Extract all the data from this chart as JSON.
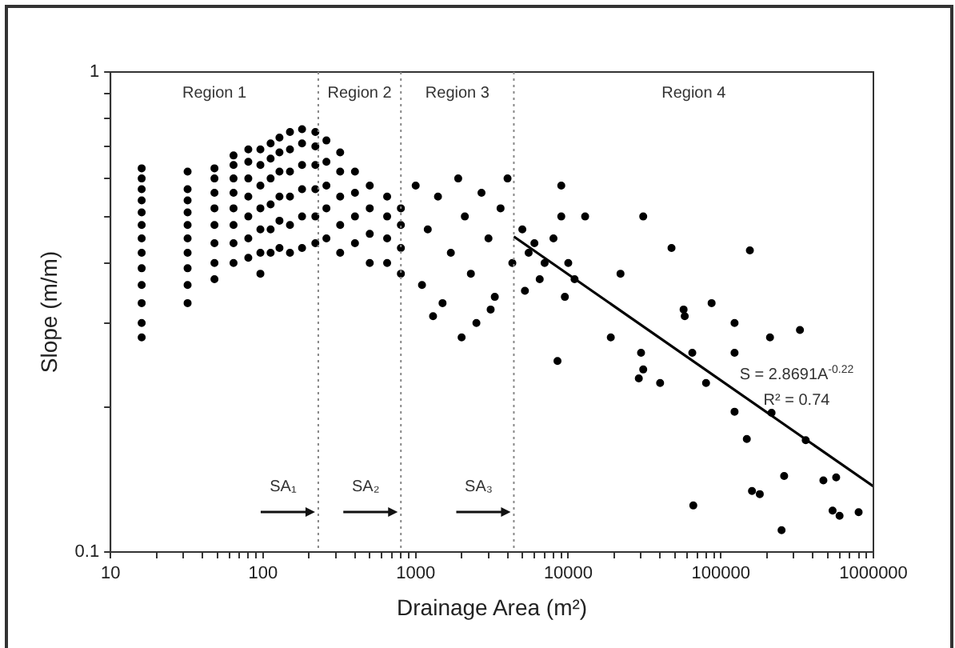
{
  "chart_data": {
    "type": "scatter",
    "xlabel": "Drainage Area (m²)",
    "ylabel": "Slope (m/m)",
    "log": "xy",
    "legend": false,
    "grid": false,
    "xlim": [
      10,
      1000000
    ],
    "xticks": [
      10,
      {
        "value": 20,
        "label": null
      },
      {
        "value": 30,
        "label": null
      },
      {
        "value": 40,
        "label": null
      },
      {
        "value": 50,
        "label": null
      },
      {
        "value": 60,
        "label": null
      },
      {
        "value": 70,
        "label": null
      },
      {
        "value": 80,
        "label": null
      },
      {
        "value": 90,
        "label": null
      },
      100,
      {
        "value": 200,
        "label": null
      },
      {
        "value": 300,
        "label": null
      },
      {
        "value": 400,
        "label": null
      },
      {
        "value": 500,
        "label": null
      },
      {
        "value": 600,
        "label": null
      },
      {
        "value": 700,
        "label": null
      },
      {
        "value": 800,
        "label": null
      },
      {
        "value": 900,
        "label": null
      },
      1000,
      {
        "value": 2000,
        "label": null
      },
      {
        "value": 3000,
        "label": null
      },
      {
        "value": 4000,
        "label": null
      },
      {
        "value": 5000,
        "label": null
      },
      {
        "value": 6000,
        "label": null
      },
      {
        "value": 7000,
        "label": null
      },
      {
        "value": 8000,
        "label": null
      },
      {
        "value": 9000,
        "label": null
      },
      10000,
      {
        "value": 20000,
        "label": null
      },
      {
        "value": 30000,
        "label": null
      },
      {
        "value": 40000,
        "label": null
      },
      {
        "value": 50000,
        "label": null
      },
      {
        "value": 60000,
        "label": null
      },
      {
        "value": 70000,
        "label": null
      },
      {
        "value": 80000,
        "label": null
      },
      {
        "value": 90000,
        "label": null
      },
      100000,
      {
        "value": 200000,
        "label": null
      },
      {
        "value": 300000,
        "label": null
      },
      {
        "value": 400000,
        "label": null
      },
      {
        "value": 500000,
        "label": null
      },
      {
        "value": 600000,
        "label": null
      },
      {
        "value": 700000,
        "label": null
      },
      {
        "value": 800000,
        "label": null
      },
      {
        "value": 900000,
        "label": null
      },
      1000000
    ],
    "ylim": [
      0.1,
      1
    ],
    "yticks": [
      0.1,
      {
        "value": 0.2,
        "label": null
      },
      {
        "value": 0.3,
        "label": null
      },
      {
        "value": 0.4,
        "label": null
      },
      {
        "value": 0.5,
        "label": null
      },
      {
        "value": 0.6,
        "label": null
      },
      {
        "value": 0.7,
        "label": null
      },
      {
        "value": 0.8,
        "label": null
      },
      {
        "value": 0.9,
        "label": null
      },
      1
    ],
    "ref_lines": [
      {
        "axis": "x",
        "value": 230,
        "label": "SA₁",
        "color": "#888888",
        "line_style": "dotted"
      },
      {
        "axis": "x",
        "value": 800,
        "label": "SA₂",
        "color": "#888888",
        "line_style": "dotted"
      },
      {
        "axis": "x",
        "value": 4400,
        "label": "SA₃",
        "color": "#888888",
        "line_style": "dotted"
      }
    ],
    "annotations": [
      "Region 1",
      "Region 2",
      "Region 3",
      "Region 4",
      "S = 2.8691A$^{-0.22}$",
      "R² = 0.74"
    ],
    "series": [
      {
        "type": "scatter",
        "color": "#000000",
        "marker": "circle",
        "x": [
          16,
          16,
          16,
          16,
          16,
          16,
          16,
          16,
          16,
          16,
          16,
          16,
          16,
          32,
          32,
          32,
          32,
          32,
          32,
          32,
          32,
          32,
          32,
          48,
          48,
          48,
          48,
          48,
          48,
          48,
          48,
          64,
          64,
          64,
          64,
          64,
          64,
          64,
          64,
          80,
          80,
          80,
          80,
          80,
          80,
          80,
          96,
          96,
          96,
          96,
          96,
          96,
          96,
          112,
          112,
          112,
          112,
          112,
          112,
          128,
          128,
          128,
          128,
          128,
          128,
          150,
          150,
          150,
          150,
          150,
          150,
          180,
          180,
          180,
          180,
          180,
          180,
          220,
          220,
          220,
          220,
          220,
          220,
          260,
          260,
          260,
          260,
          260,
          320,
          320,
          320,
          320,
          320,
          400,
          400,
          400,
          400,
          500,
          500,
          500,
          500,
          650,
          650,
          650,
          650,
          800,
          800,
          800,
          800,
          1000,
          1100,
          1200,
          1400,
          1500,
          1700,
          1900,
          2100,
          2300,
          2500,
          2700,
          3000,
          3300,
          3600,
          4000,
          4300,
          1300,
          2000,
          3100,
          5000,
          5500,
          6000,
          7000,
          5200,
          6500,
          8000,
          10000,
          11000,
          9500,
          9000,
          9000,
          12900,
          31000,
          47500,
          155000,
          22000,
          57000,
          58000,
          87000,
          123000,
          210000,
          330000,
          123000,
          19000,
          30000,
          31000,
          29000,
          40000,
          80000,
          65000,
          8500,
          123000,
          215000,
          148000,
          360000,
          260000,
          470000,
          570000,
          180000,
          66000,
          800000,
          250000,
          600000,
          540000,
          160000
        ],
        "values": [
          0.28,
          0.3,
          0.33,
          0.36,
          0.39,
          0.42,
          0.45,
          0.48,
          0.51,
          0.54,
          0.57,
          0.6,
          0.63,
          0.33,
          0.36,
          0.39,
          0.42,
          0.45,
          0.48,
          0.51,
          0.54,
          0.57,
          0.62,
          0.37,
          0.4,
          0.44,
          0.48,
          0.52,
          0.56,
          0.6,
          0.63,
          0.4,
          0.44,
          0.48,
          0.52,
          0.56,
          0.6,
          0.64,
          0.67,
          0.41,
          0.45,
          0.5,
          0.55,
          0.6,
          0.65,
          0.69,
          0.38,
          0.42,
          0.47,
          0.52,
          0.58,
          0.64,
          0.69,
          0.42,
          0.47,
          0.53,
          0.6,
          0.66,
          0.71,
          0.43,
          0.49,
          0.55,
          0.62,
          0.68,
          0.73,
          0.42,
          0.48,
          0.55,
          0.62,
          0.69,
          0.75,
          0.43,
          0.5,
          0.57,
          0.64,
          0.71,
          0.76,
          0.44,
          0.5,
          0.57,
          0.64,
          0.7,
          0.75,
          0.45,
          0.52,
          0.58,
          0.65,
          0.72,
          0.42,
          0.48,
          0.55,
          0.62,
          0.68,
          0.44,
          0.5,
          0.56,
          0.62,
          0.4,
          0.46,
          0.52,
          0.58,
          0.4,
          0.45,
          0.5,
          0.55,
          0.38,
          0.43,
          0.48,
          0.52,
          0.58,
          0.36,
          0.47,
          0.55,
          0.33,
          0.42,
          0.6,
          0.5,
          0.38,
          0.3,
          0.56,
          0.45,
          0.34,
          0.52,
          0.6,
          0.4,
          0.31,
          0.28,
          0.32,
          0.47,
          0.42,
          0.44,
          0.4,
          0.35,
          0.37,
          0.45,
          0.4,
          0.37,
          0.34,
          0.58,
          0.5,
          0.5,
          0.5,
          0.43,
          0.425,
          0.38,
          0.32,
          0.31,
          0.33,
          0.3,
          0.28,
          0.29,
          0.26,
          0.28,
          0.26,
          0.24,
          0.23,
          0.225,
          0.225,
          0.26,
          0.25,
          0.196,
          0.195,
          0.172,
          0.171,
          0.144,
          0.141,
          0.143,
          0.132,
          0.125,
          0.121,
          0.111,
          0.119,
          0.122,
          0.134
        ]
      },
      {
        "type": "line",
        "color": "#000000",
        "marker": "none",
        "x": [
          4400,
          1000000
        ],
        "values": [
          0.454,
          0.137
        ]
      }
    ]
  }
}
